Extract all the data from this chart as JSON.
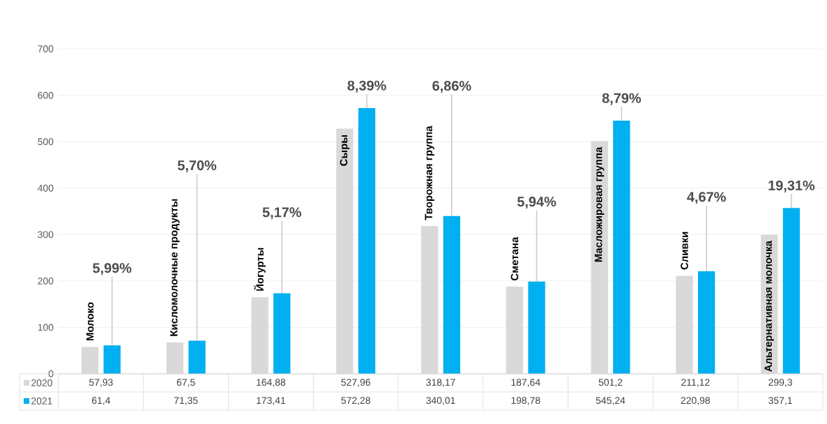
{
  "chart_data": {
    "type": "bar",
    "categories": [
      "Молоко",
      "Кисломолочные продукты",
      "Йогурты",
      "Сыры",
      "Творожная группа",
      "Сметана",
      "Масложировая группа",
      "Сливки",
      "Альтернативная молочка"
    ],
    "series": [
      {
        "name": "2020",
        "color": "#d9d9d9",
        "values": [
          57.93,
          67.5,
          164.88,
          527.96,
          318.17,
          187.64,
          501.2,
          211.12,
          299.3
        ],
        "value_labels": [
          "57,93",
          "67,5",
          "164,88",
          "527,96",
          "318,17",
          "187,64",
          "501,2",
          "211,12",
          "299,3"
        ]
      },
      {
        "name": "2021",
        "color": "#00b0f0",
        "values": [
          61.4,
          71.35,
          173.41,
          572.28,
          340.01,
          198.78,
          545.24,
          220.98,
          357.1
        ],
        "value_labels": [
          "61,4",
          "71,35",
          "173,41",
          "572,28",
          "340,01",
          "198,78",
          "545,24",
          "220,98",
          "357,1"
        ]
      }
    ],
    "ylim": [
      0,
      700
    ],
    "yticks": [
      0,
      100,
      200,
      300,
      400,
      500,
      600,
      700
    ],
    "grid": "y",
    "legend": "bottom",
    "annotations": [
      {
        "text": "5,99%",
        "y": 61.4
      },
      {
        "text": "5,70%",
        "y": 71.35
      },
      {
        "text": "5,17%",
        "y": 173.41
      },
      {
        "text": "8,39%",
        "y": 572.28
      },
      {
        "text": "6,86%",
        "y": 340.01
      },
      {
        "text": "5,94%",
        "y": 198.78
      },
      {
        "text": "8,79%",
        "y": 545.24
      },
      {
        "text": "4,67%",
        "y": 220.98
      },
      {
        "text": "19,31%",
        "y": 357.1
      }
    ]
  }
}
